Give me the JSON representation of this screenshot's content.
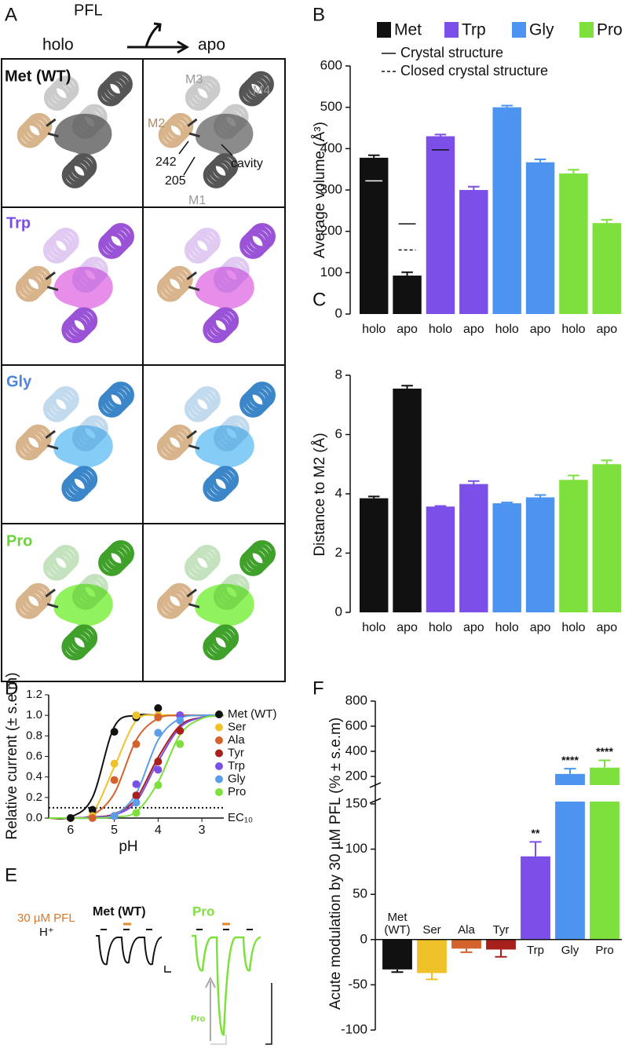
{
  "panel_a": {
    "label": "A",
    "arrow": {
      "top": "PFL",
      "left": "holo",
      "right": "apo"
    },
    "rows": [
      "Met (WT)",
      "Trp",
      "Gly",
      "Pro"
    ],
    "annotations": [
      "M3",
      "M4",
      "M2",
      "242",
      "205",
      "cavity",
      "M1"
    ]
  },
  "chart_data": [
    {
      "type": "bar",
      "panel": "B",
      "ylabel": "Average volume (Å³)",
      "categories": [
        "holo",
        "apo",
        "holo",
        "apo",
        "holo",
        "apo",
        "holo",
        "apo"
      ],
      "series": [
        {
          "name": "Met",
          "color": "#111111",
          "values": [
            378,
            93,
            null,
            null,
            null,
            null,
            null,
            null
          ],
          "errors": [
            6,
            8,
            null,
            null,
            null,
            null,
            null,
            null
          ]
        },
        {
          "name": "Trp",
          "color": "#7b4fe8",
          "values": [
            null,
            null,
            430,
            300,
            null,
            null,
            null,
            null
          ],
          "errors": [
            null,
            null,
            4,
            8,
            null,
            null,
            null,
            null
          ]
        },
        {
          "name": "Gly",
          "color": "#4d94f0",
          "values": [
            null,
            null,
            null,
            null,
            500,
            367,
            null,
            null
          ],
          "errors": [
            null,
            null,
            null,
            null,
            4,
            7,
            null,
            null
          ]
        },
        {
          "name": "Pro",
          "color": "#7de03c",
          "values": [
            null,
            null,
            null,
            null,
            null,
            null,
            340,
            220
          ],
          "errors": [
            null,
            null,
            null,
            null,
            null,
            null,
            9,
            8
          ]
        }
      ],
      "reference_lines": [
        {
          "name": "Crystal structure",
          "style": "solid",
          "values": [
            322,
            218,
            397,
            null,
            null,
            null,
            null,
            null
          ]
        },
        {
          "name": "Closed crystal structure",
          "style": "dashed",
          "values": [
            null,
            155,
            null,
            null,
            null,
            null,
            null,
            null
          ]
        }
      ],
      "ylim": [
        0,
        600
      ],
      "yticks": [
        0,
        100,
        200,
        300,
        400,
        500,
        600
      ]
    },
    {
      "type": "bar",
      "panel": "C",
      "ylabel": "Distance to M2 (Å)",
      "categories": [
        "holo",
        "apo",
        "holo",
        "apo",
        "holo",
        "apo",
        "holo",
        "apo"
      ],
      "series": [
        {
          "name": "Met",
          "color": "#111111",
          "values": [
            3.85,
            7.55,
            null,
            null,
            null,
            null,
            null,
            null
          ],
          "errors": [
            0.06,
            0.1,
            null,
            null,
            null,
            null,
            null,
            null
          ]
        },
        {
          "name": "Trp",
          "color": "#7b4fe8",
          "values": [
            null,
            null,
            3.57,
            4.33,
            null,
            null,
            null,
            null
          ],
          "errors": [
            null,
            null,
            0.02,
            0.1,
            null,
            null,
            null,
            null
          ]
        },
        {
          "name": "Gly",
          "color": "#4d94f0",
          "values": [
            null,
            null,
            null,
            null,
            3.68,
            3.88,
            null,
            null
          ],
          "errors": [
            null,
            null,
            null,
            null,
            0.03,
            0.08,
            null,
            null
          ]
        },
        {
          "name": "Pro",
          "color": "#7de03c",
          "values": [
            null,
            null,
            null,
            null,
            null,
            null,
            4.47,
            5.0
          ],
          "errors": [
            null,
            null,
            null,
            null,
            null,
            null,
            0.15,
            0.13
          ]
        }
      ],
      "ylim": [
        0,
        8
      ],
      "yticks": [
        0,
        2,
        4,
        6,
        8
      ]
    },
    {
      "type": "line",
      "panel": "D",
      "xlabel": "pH",
      "ylabel": "Relative current (± s.e.m)",
      "xlim": [
        6.5,
        2.5
      ],
      "xticks": [
        6,
        5,
        4,
        3
      ],
      "ylim": [
        0,
        1.2
      ],
      "yticks": [
        {
          "value": 0,
          "label": "0.0"
        },
        0.2,
        0.4,
        0.6,
        0.8,
        {
          "value": 1,
          "label": "1.0"
        },
        1.2
      ],
      "threshold": {
        "value": 0.1,
        "label": "EC₁₀"
      },
      "fit_x": [
        6.5,
        6,
        5.5,
        5,
        4.5,
        4,
        3.5,
        3,
        2.5
      ],
      "series": [
        {
          "name": "Met (WT)",
          "color": "#111111",
          "x": [
            6,
            5.5,
            5,
            4.5,
            4,
            3.5
          ],
          "values": [
            0,
            0.08,
            0.84,
            0.98,
            1.07,
            1.0
          ],
          "fit": [
            0,
            0.01,
            0.2,
            0.89,
            1,
            1,
            1,
            1,
            1
          ]
        },
        {
          "name": "Ser",
          "color": "#f0c22a",
          "x": [
            5.5,
            5,
            4.5,
            4
          ],
          "values": [
            0.02,
            0.53,
            1.0,
            1.0
          ],
          "fit": [
            0,
            0,
            0.05,
            0.5,
            0.95,
            1,
            1,
            1,
            1
          ]
        },
        {
          "name": "Ala",
          "color": "#d4622c",
          "x": [
            5.5,
            5,
            4.5,
            4
          ],
          "values": [
            0,
            0.37,
            0.72,
            0.98
          ],
          "fit": [
            0,
            0,
            0.03,
            0.24,
            0.76,
            0.97,
            1,
            1,
            1
          ]
        },
        {
          "name": "Tyr",
          "color": "#a8201c",
          "x": [
            5,
            4.5,
            4,
            3.5
          ],
          "values": [
            0.02,
            0.22,
            0.55,
            0.85
          ],
          "fit": [
            0,
            0,
            0.01,
            0.04,
            0.19,
            0.59,
            0.9,
            0.98,
            1
          ]
        },
        {
          "name": "Trp",
          "color": "#7b4fe8",
          "x": [
            5,
            4.5,
            4,
            3.5
          ],
          "values": [
            0.02,
            0.33,
            0.47,
            1.0
          ],
          "fit": [
            0,
            0,
            0.01,
            0.03,
            0.16,
            0.55,
            0.88,
            0.98,
            1
          ]
        },
        {
          "name": "Gly",
          "color": "#5a9ee8",
          "x": [
            5,
            4.5,
            4,
            3.5
          ],
          "values": [
            0.02,
            0.15,
            0.83,
            0.95
          ],
          "fit": [
            0,
            0,
            0,
            0.03,
            0.24,
            0.76,
            0.97,
            1,
            1
          ]
        },
        {
          "name": "Pro",
          "color": "#7de03c",
          "x": [
            4.5,
            4,
            3.5
          ],
          "values": [
            0.05,
            0.32,
            0.72
          ],
          "fit": [
            0,
            0,
            0,
            0.01,
            0.06,
            0.35,
            0.81,
            0.97,
            1
          ]
        }
      ]
    },
    {
      "type": "bar",
      "panel": "F",
      "ylabel": "Acute modulation by 30 µM PFL (% ± s.e.m)",
      "categories": [
        "Met (WT)",
        "Ser",
        "Ala",
        "Tyr",
        "Trp",
        "Gly",
        "Pro"
      ],
      "colors": [
        "#111111",
        "#f0c22a",
        "#d4622c",
        "#a8201c",
        "#7b4fe8",
        "#4d94f0",
        "#7de03c"
      ],
      "values": [
        -33,
        -37,
        -10,
        -11,
        92,
        220,
        270
      ],
      "errors": [
        3,
        7,
        4,
        8,
        16,
        42,
        58
      ],
      "significance": [
        null,
        null,
        null,
        null,
        "**",
        "****",
        "****"
      ],
      "ylim": [
        -100,
        800
      ],
      "axis_break": 150,
      "yticks": [
        -100,
        -50,
        0,
        50,
        100,
        150,
        200,
        400,
        600,
        800
      ]
    }
  ],
  "panel_e": {
    "label": "E",
    "stimulus": "30 µM PFL",
    "proton": "H⁺",
    "traces": [
      "Met (WT)",
      "Pro"
    ],
    "inset": "Pro"
  }
}
